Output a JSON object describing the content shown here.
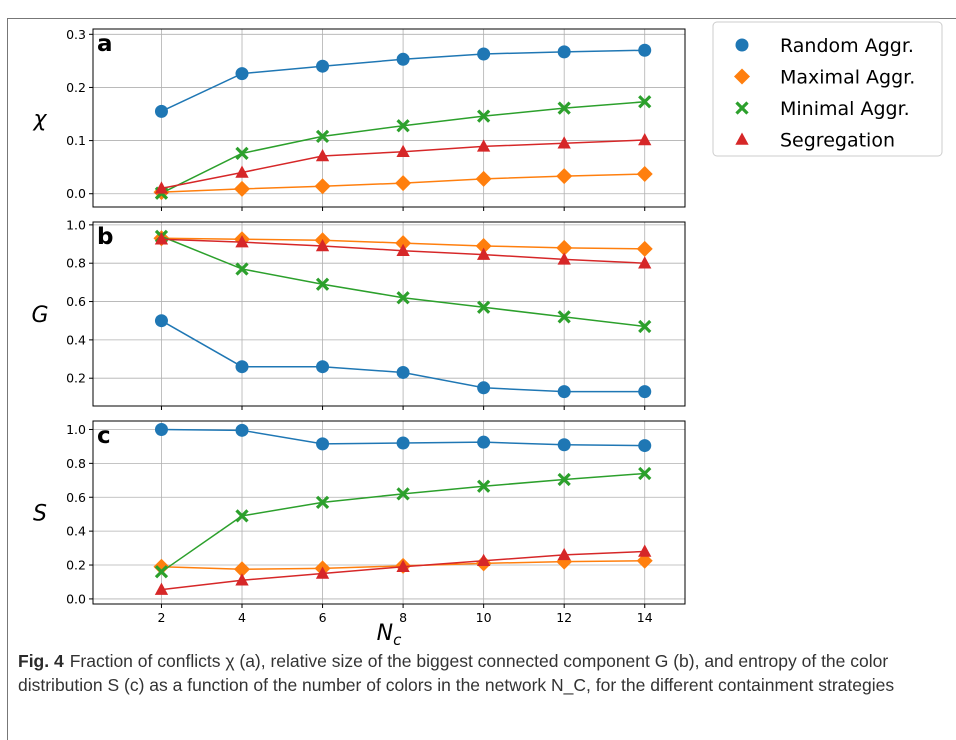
{
  "colors": {
    "random": "#1f77b4",
    "maximal": "#ff7f0e",
    "minimal": "#2ca02c",
    "segregation": "#d62728",
    "grid": "#b0b0b0",
    "axis": "#000000"
  },
  "chart_data": [
    {
      "type": "line",
      "panel_label": "a",
      "ylabel": "χ",
      "x": [
        2,
        4,
        6,
        8,
        10,
        12,
        14
      ],
      "xticks": [
        "2",
        "4",
        "6",
        "8",
        "10",
        "12",
        "14"
      ],
      "xlim": [
        0.3,
        15
      ],
      "ylim": [
        -0.025,
        0.31
      ],
      "yticks": [
        "0.0",
        "0.1",
        "0.2",
        "0.3"
      ],
      "ytick_values": [
        0.0,
        0.1,
        0.2,
        0.3
      ],
      "grid": true,
      "series": [
        {
          "key": "random",
          "name": "Random Aggr.",
          "marker": "circle",
          "values": [
            0.155,
            0.226,
            0.24,
            0.253,
            0.263,
            0.267,
            0.27
          ]
        },
        {
          "key": "maximal",
          "name": "Maximal Aggr.",
          "marker": "diamond",
          "values": [
            0.003,
            0.009,
            0.014,
            0.02,
            0.028,
            0.033,
            0.037
          ]
        },
        {
          "key": "minimal",
          "name": "Minimal Aggr.",
          "marker": "x",
          "values": [
            0.001,
            0.076,
            0.108,
            0.128,
            0.146,
            0.161,
            0.173
          ]
        },
        {
          "key": "segregation",
          "name": "Segregation",
          "marker": "triangle",
          "values": [
            0.01,
            0.04,
            0.071,
            0.079,
            0.089,
            0.095,
            0.101
          ]
        }
      ]
    },
    {
      "type": "line",
      "panel_label": "b",
      "ylabel": "G",
      "x": [
        2,
        4,
        6,
        8,
        10,
        12,
        14
      ],
      "xticks": [
        "2",
        "4",
        "6",
        "8",
        "10",
        "12",
        "14"
      ],
      "xlim": [
        0.3,
        15
      ],
      "ylim": [
        0.055,
        1.015
      ],
      "yticks": [
        "0.2",
        "0.4",
        "0.6",
        "0.8",
        "1.0"
      ],
      "ytick_values": [
        0.2,
        0.4,
        0.6,
        0.8,
        1.0
      ],
      "grid": true,
      "series": [
        {
          "key": "random",
          "name": "Random Aggr.",
          "marker": "circle",
          "values": [
            0.5,
            0.26,
            0.26,
            0.23,
            0.15,
            0.13,
            0.13
          ]
        },
        {
          "key": "maximal",
          "name": "Maximal Aggr.",
          "marker": "diamond",
          "values": [
            0.93,
            0.925,
            0.92,
            0.905,
            0.89,
            0.88,
            0.875
          ]
        },
        {
          "key": "minimal",
          "name": "Minimal Aggr.",
          "marker": "x",
          "values": [
            0.94,
            0.77,
            0.69,
            0.62,
            0.57,
            0.52,
            0.47
          ]
        },
        {
          "key": "segregation",
          "name": "Segregation",
          "marker": "triangle",
          "values": [
            0.925,
            0.91,
            0.89,
            0.865,
            0.845,
            0.82,
            0.8
          ]
        }
      ]
    },
    {
      "type": "line",
      "panel_label": "c",
      "ylabel": "S",
      "xlabel": "N_c",
      "x": [
        2,
        4,
        6,
        8,
        10,
        12,
        14
      ],
      "xticks": [
        "2",
        "4",
        "6",
        "8",
        "10",
        "12",
        "14"
      ],
      "xlim": [
        0.3,
        15
      ],
      "ylim": [
        -0.03,
        1.05
      ],
      "yticks": [
        "0.0",
        "0.2",
        "0.4",
        "0.6",
        "0.8",
        "1.0"
      ],
      "ytick_values": [
        0.0,
        0.2,
        0.4,
        0.6,
        0.8,
        1.0
      ],
      "grid": true,
      "series": [
        {
          "key": "random",
          "name": "Random Aggr.",
          "marker": "circle",
          "values": [
            1.0,
            0.995,
            0.915,
            0.92,
            0.925,
            0.91,
            0.905
          ]
        },
        {
          "key": "maximal",
          "name": "Maximal Aggr.",
          "marker": "diamond",
          "values": [
            0.19,
            0.175,
            0.18,
            0.195,
            0.21,
            0.22,
            0.225
          ]
        },
        {
          "key": "minimal",
          "name": "Minimal Aggr.",
          "marker": "x",
          "values": [
            0.16,
            0.49,
            0.57,
            0.62,
            0.665,
            0.705,
            0.74
          ]
        },
        {
          "key": "segregation",
          "name": "Segregation",
          "marker": "triangle",
          "values": [
            0.055,
            0.11,
            0.15,
            0.19,
            0.225,
            0.26,
            0.28
          ]
        }
      ]
    }
  ],
  "legend": {
    "placement": "right of panel a",
    "entries": [
      {
        "key": "random",
        "label": "Random Aggr.",
        "marker": "circle"
      },
      {
        "key": "maximal",
        "label": "Maximal Aggr.",
        "marker": "diamond"
      },
      {
        "key": "minimal",
        "label": "Minimal Aggr.",
        "marker": "x"
      },
      {
        "key": "segregation",
        "label": "Segregation",
        "marker": "triangle"
      }
    ]
  },
  "xlabel_main": "N",
  "xlabel_sub": "c",
  "caption": {
    "label": "Fig. 4",
    "text": "Fraction of conflicts χ (a), relative size of the biggest connected component G (b), and entropy of the color distribution S (c) as a function of the number of colors in the network N_C, for the different containment strategies"
  }
}
